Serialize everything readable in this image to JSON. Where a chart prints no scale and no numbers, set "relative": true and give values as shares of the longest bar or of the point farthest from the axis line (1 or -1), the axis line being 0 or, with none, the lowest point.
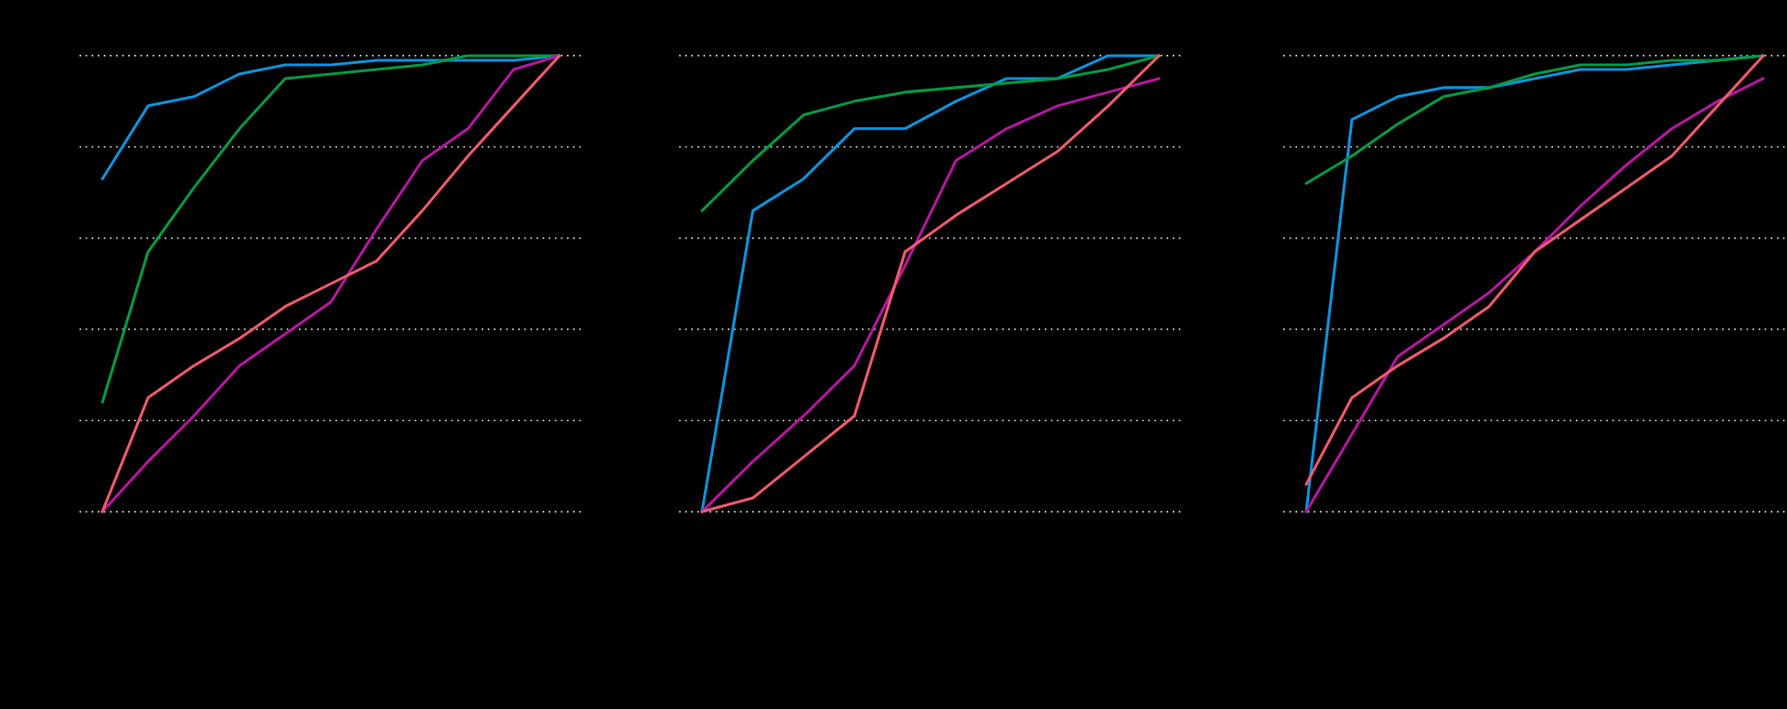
{
  "chart_data": [
    {
      "type": "line",
      "relative": true,
      "categories": [
        null,
        null,
        null,
        null,
        null,
        null,
        null,
        null,
        null,
        null,
        null
      ],
      "grid": "y",
      "series": [
        {
          "color": "#0b93db",
          "values": [
            0.73,
            0.89,
            0.91,
            0.96,
            0.98,
            0.98,
            0.99,
            0.99,
            0.99,
            0.99,
            1.0
          ]
        },
        {
          "color": "#009944",
          "values": [
            0.24,
            0.57,
            0.71,
            0.84,
            0.95,
            0.96,
            0.97,
            0.98,
            1.0,
            1.0,
            1.0
          ]
        },
        {
          "color": "#b5179e",
          "values": [
            0,
            0.11,
            0.21,
            0.32,
            0.39,
            0.46,
            0.62,
            0.77,
            0.84,
            0.97,
            1.0
          ]
        },
        {
          "color": "#f05a6e",
          "values": [
            0,
            0.25,
            0.32,
            0.38,
            0.45,
            0.5,
            0.55,
            0.66,
            0.78,
            0.89,
            1.0
          ]
        }
      ]
    },
    {
      "type": "line",
      "relative": true,
      "categories": [
        null,
        null,
        null,
        null,
        null,
        null,
        null,
        null,
        null,
        null
      ],
      "grid": "y",
      "series": [
        {
          "color": "#0b93db",
          "values": [
            0,
            0.66,
            0.73,
            0.84,
            0.84,
            0.9,
            0.95,
            0.95,
            1.0,
            1.0
          ]
        },
        {
          "color": "#009944",
          "values": [
            0.66,
            0.77,
            0.87,
            0.9,
            0.92,
            0.93,
            0.94,
            0.95,
            0.97,
            1.0
          ]
        },
        {
          "color": "#b5179e",
          "values": [
            0,
            0.11,
            0.21,
            0.32,
            0.54,
            0.77,
            0.84,
            0.89,
            0.92,
            0.95
          ]
        },
        {
          "color": "#f05a6e",
          "values": [
            0,
            0.03,
            0.12,
            0.21,
            0.57,
            0.65,
            0.72,
            0.79,
            0.89,
            1.0
          ]
        }
      ]
    },
    {
      "type": "line",
      "relative": true,
      "categories": [
        null,
        null,
        null,
        null,
        null,
        null,
        null,
        null,
        null,
        null,
        null
      ],
      "grid": "y",
      "series": [
        {
          "color": "#0b93db",
          "values": [
            0,
            0.86,
            0.91,
            0.93,
            0.93,
            0.95,
            0.97,
            0.97,
            0.98,
            0.99,
            1.0
          ]
        },
        {
          "color": "#009944",
          "values": [
            0.72,
            0.78,
            0.85,
            0.91,
            0.93,
            0.96,
            0.98,
            0.98,
            0.99,
            0.99,
            1.0
          ]
        },
        {
          "color": "#b5179e",
          "values": [
            0,
            0.17,
            0.34,
            0.41,
            0.48,
            0.57,
            0.67,
            0.76,
            0.84,
            0.9,
            0.95
          ]
        },
        {
          "color": "#f05a6e",
          "values": [
            0.06,
            0.25,
            0.32,
            0.38,
            0.45,
            0.57,
            0.64,
            0.71,
            0.78,
            0.89,
            1.0
          ]
        }
      ]
    }
  ]
}
